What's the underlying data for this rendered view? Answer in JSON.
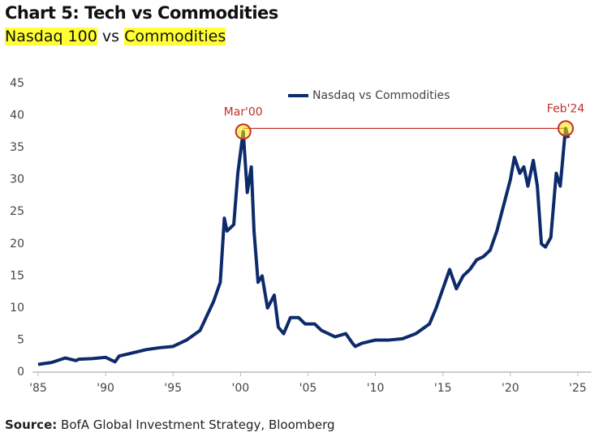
{
  "chart_data": {
    "type": "line",
    "title": "Chart 5: Tech vs Commodities",
    "subtitle": [
      "Nasdaq 100",
      "vs",
      "Commodities"
    ],
    "source": [
      "Source:",
      "BofA Global Investment Strategy, Bloomberg"
    ],
    "x": [
      1985,
      1986,
      1987,
      1987.8,
      1988,
      1989,
      1990,
      1990.7,
      1991,
      1992,
      1993,
      1994,
      1995,
      1996,
      1997,
      1998,
      1998.5,
      1998.8,
      1999,
      1999.5,
      1999.8,
      2000.2,
      2000.5,
      2000.8,
      2001,
      2001.3,
      2001.6,
      2002,
      2002.5,
      2002.8,
      2003.2,
      2003.7,
      2004.3,
      2004.8,
      2005.5,
      2006,
      2007,
      2007.8,
      2008.3,
      2008.5,
      2009,
      2010,
      2011,
      2012,
      2013,
      2014,
      2014.5,
      2015,
      2015.5,
      2016,
      2016.5,
      2017,
      2017.5,
      2018,
      2018.5,
      2019,
      2019.5,
      2020,
      2020.3,
      2020.7,
      2021,
      2021.3,
      2021.7,
      2022,
      2022.3,
      2022.6,
      2023,
      2023.4,
      2023.7,
      2024,
      2024.1,
      2024.3
    ],
    "series": [
      {
        "name": "Nasdaq vs Commodities",
        "color": "#0d2a6b",
        "values": [
          1.2,
          1.5,
          2.2,
          1.8,
          2.0,
          2.1,
          2.3,
          1.6,
          2.5,
          3.0,
          3.5,
          3.8,
          4.0,
          5.0,
          6.5,
          11,
          14,
          24,
          22,
          23,
          31,
          37.5,
          28,
          32,
          22,
          14,
          15,
          10,
          12,
          7,
          6,
          8.5,
          8.5,
          7.5,
          7.5,
          6.5,
          5.5,
          6,
          4.5,
          4,
          4.5,
          5,
          5,
          5.2,
          6,
          7.5,
          10,
          13,
          16,
          13,
          15,
          16,
          17.5,
          18,
          19,
          22,
          26,
          30,
          33.5,
          31,
          32,
          29,
          33,
          29,
          20,
          19.5,
          21,
          31,
          29,
          36,
          38,
          36.5
        ]
      }
    ],
    "annotations": [
      {
        "text": "Mar'00",
        "x": 2000.2,
        "y": 37.5
      },
      {
        "text": "Feb'24",
        "x": 2024.1,
        "y": 38
      }
    ],
    "reference_line": {
      "x": [
        2000.2,
        2024.1
      ],
      "y": 38,
      "color": "#c0302a"
    },
    "xlim": [
      1984.6,
      2026
    ],
    "xticks": [
      {
        "value": 1985,
        "label": "'85"
      },
      {
        "value": 1990,
        "label": "'90"
      },
      {
        "value": 1995,
        "label": "'95"
      },
      {
        "value": 2000,
        "label": "'00"
      },
      {
        "value": 2005,
        "label": "'05"
      },
      {
        "value": 2010,
        "label": "'10"
      },
      {
        "value": 2015,
        "label": "'15"
      },
      {
        "value": 2020,
        "label": "'20"
      },
      {
        "value": 2025,
        "label": "'25"
      }
    ],
    "ylim": [
      0,
      45
    ],
    "yticks": [
      0,
      5,
      10,
      15,
      20,
      25,
      30,
      35,
      40,
      45
    ],
    "legend": "top"
  }
}
